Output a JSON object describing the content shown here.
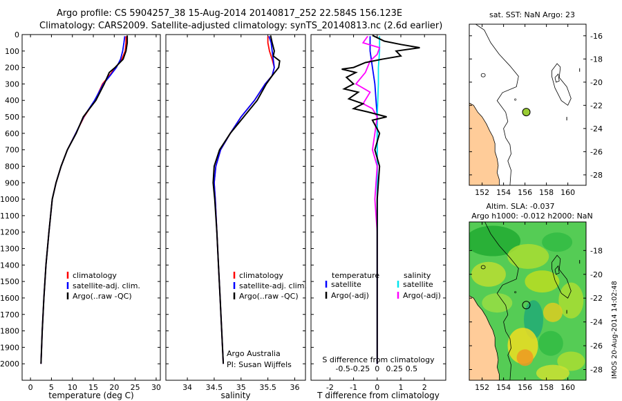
{
  "header": {
    "line1": "Argo profile: CS 5904257_38 15-Aug-2014 20140817_252 22.584S 156.123E",
    "line2": "Climatology: CARS2009. Satellite-adjusted climatology: synTS_20140813.nc (2.6d earlier)"
  },
  "colors": {
    "climatology": "#ff0000",
    "satellite": "#0000ff",
    "argo": "#000000",
    "t_satellite": "#0000ff",
    "s_satellite": "#00e5ee",
    "s_argo": "#ff00ff",
    "land": "#ffcc99",
    "float_marker": "#99cc33"
  },
  "chart_data": [
    {
      "type": "line",
      "name": "temperature-profile",
      "xlabel": "temperature (deg C)",
      "ylabel": "",
      "xlim": [
        -2,
        31
      ],
      "ylim": [
        2100,
        0
      ],
      "xticks": [
        "0",
        "5",
        "10",
        "15",
        "20",
        "25",
        "30"
      ],
      "yticks": [
        "0",
        "100",
        "200",
        "300",
        "400",
        "500",
        "600",
        "700",
        "800",
        "900",
        "1000",
        "1100",
        "1200",
        "1300",
        "1400",
        "1500",
        "1600",
        "1700",
        "1800",
        "1900",
        "2000"
      ],
      "legend": [
        "climatology",
        "satellite-adj. clim.",
        "Argo(..raw -QC)"
      ],
      "series": [
        {
          "name": "climatology",
          "color": "#ff0000",
          "points": [
            [
              22.8,
              10
            ],
            [
              22.8,
              50
            ],
            [
              22.6,
              100
            ],
            [
              21.8,
              150
            ],
            [
              20.3,
              200
            ],
            [
              18.8,
              250
            ],
            [
              17.2,
              300
            ],
            [
              15.4,
              400
            ],
            [
              12.8,
              500
            ],
            [
              10.8,
              600
            ],
            [
              8.8,
              700
            ],
            [
              7.3,
              800
            ],
            [
              6.1,
              900
            ],
            [
              5.2,
              1000
            ],
            [
              4.4,
              1200
            ],
            [
              3.7,
              1400
            ],
            [
              3.2,
              1600
            ],
            [
              2.8,
              1800
            ],
            [
              2.5,
              2000
            ]
          ]
        },
        {
          "name": "satellite",
          "color": "#0000ff",
          "points": [
            [
              22.5,
              10
            ],
            [
              22.3,
              50
            ],
            [
              22.0,
              100
            ],
            [
              21.5,
              150
            ],
            [
              20.5,
              200
            ],
            [
              19.0,
              250
            ],
            [
              17.4,
              300
            ],
            [
              15.3,
              400
            ],
            [
              12.7,
              500
            ],
            [
              10.8,
              600
            ],
            [
              8.8,
              700
            ],
            [
              7.3,
              800
            ],
            [
              6.1,
              900
            ],
            [
              5.2,
              1000
            ],
            [
              4.4,
              1200
            ],
            [
              3.7,
              1400
            ],
            [
              3.2,
              1600
            ],
            [
              2.8,
              1800
            ],
            [
              2.5,
              2000
            ]
          ]
        },
        {
          "name": "argo",
          "color": "#000000",
          "points": [
            [
              23.1,
              5
            ],
            [
              23.1,
              50
            ],
            [
              22.8,
              100
            ],
            [
              22.1,
              150
            ],
            [
              20.2,
              200
            ],
            [
              18.8,
              230
            ],
            [
              17.6,
              300
            ],
            [
              15.6,
              400
            ],
            [
              12.6,
              500
            ],
            [
              10.9,
              600
            ],
            [
              8.8,
              700
            ],
            [
              7.3,
              800
            ],
            [
              6.1,
              900
            ],
            [
              5.2,
              1000
            ],
            [
              4.4,
              1200
            ],
            [
              3.7,
              1400
            ],
            [
              3.2,
              1600
            ],
            [
              2.8,
              1800
            ],
            [
              2.5,
              2000
            ]
          ]
        }
      ]
    },
    {
      "type": "line",
      "name": "salinity-profile",
      "xlabel": "salinity",
      "xlim": [
        33.6,
        36.2
      ],
      "ylim": [
        2100,
        0
      ],
      "xticks": [
        "34",
        "34.5",
        "35",
        "35.5",
        "36"
      ],
      "legend": [
        "climatology",
        "satellite-adj. clim.",
        "Argo(..raw -QC)"
      ],
      "annotation": [
        "Argo Australia",
        "PI: Susan Wijffels"
      ],
      "series": [
        {
          "name": "climatology",
          "color": "#ff0000",
          "points": [
            [
              35.5,
              10
            ],
            [
              35.5,
              50
            ],
            [
              35.53,
              100
            ],
            [
              35.58,
              150
            ],
            [
              35.62,
              200
            ],
            [
              35.58,
              250
            ],
            [
              35.45,
              300
            ],
            [
              35.25,
              400
            ],
            [
              35.0,
              500
            ],
            [
              34.8,
              600
            ],
            [
              34.62,
              700
            ],
            [
              34.53,
              800
            ],
            [
              34.5,
              900
            ],
            [
              34.52,
              1000
            ],
            [
              34.55,
              1200
            ],
            [
              34.58,
              1400
            ],
            [
              34.61,
              1600
            ],
            [
              34.64,
              1800
            ],
            [
              34.67,
              2000
            ]
          ]
        },
        {
          "name": "satellite",
          "color": "#0000ff",
          "points": [
            [
              35.52,
              10
            ],
            [
              35.56,
              50
            ],
            [
              35.58,
              100
            ],
            [
              35.6,
              150
            ],
            [
              35.62,
              200
            ],
            [
              35.58,
              250
            ],
            [
              35.45,
              300
            ],
            [
              35.25,
              400
            ],
            [
              35.0,
              500
            ],
            [
              34.8,
              600
            ],
            [
              34.62,
              700
            ],
            [
              34.53,
              800
            ],
            [
              34.5,
              900
            ],
            [
              34.52,
              1000
            ],
            [
              34.55,
              1200
            ],
            [
              34.58,
              1400
            ],
            [
              34.61,
              1600
            ],
            [
              34.64,
              1800
            ],
            [
              34.67,
              2000
            ]
          ]
        },
        {
          "name": "argo",
          "color": "#000000",
          "points": [
            [
              35.55,
              5
            ],
            [
              35.58,
              50
            ],
            [
              35.62,
              100
            ],
            [
              35.6,
              130
            ],
            [
              35.72,
              160
            ],
            [
              35.7,
              200
            ],
            [
              35.58,
              250
            ],
            [
              35.47,
              300
            ],
            [
              35.3,
              400
            ],
            [
              35.05,
              500
            ],
            [
              34.8,
              600
            ],
            [
              34.6,
              700
            ],
            [
              34.5,
              800
            ],
            [
              34.48,
              900
            ],
            [
              34.51,
              1000
            ],
            [
              34.55,
              1200
            ],
            [
              34.58,
              1400
            ],
            [
              34.61,
              1600
            ],
            [
              34.64,
              1800
            ],
            [
              34.67,
              2000
            ]
          ]
        }
      ]
    },
    {
      "type": "line",
      "name": "difference-profile",
      "xlabel": "T difference from climatology",
      "x2label": "S difference from climatology",
      "xlim": [
        -2.8,
        2.9
      ],
      "ylim": [
        2100,
        0
      ],
      "xticks": [
        "-2",
        "-1",
        "0",
        "1",
        "2"
      ],
      "x2ticks": [
        "-0.5",
        "-0.25",
        "0",
        "0.25",
        "0.5"
      ],
      "legend_headers": [
        "temperature",
        "salinity"
      ],
      "legend": [
        "satellite",
        "Argo(-adj)",
        "satellite",
        "Argo(-adj)"
      ],
      "series": [
        {
          "name": "T satellite",
          "color": "#0000ff",
          "points": [
            [
              -0.3,
              10
            ],
            [
              -0.3,
              100
            ],
            [
              -0.2,
              200
            ],
            [
              -0.1,
              300
            ],
            [
              0.0,
              500
            ],
            [
              0.0,
              1000
            ],
            [
              0.0,
              2000
            ]
          ]
        },
        {
          "name": "S satellite",
          "color": "#00e5ee",
          "points": [
            [
              0.1,
              10
            ],
            [
              0.1,
              100
            ],
            [
              0.05,
              200
            ],
            [
              0.05,
              300
            ],
            [
              0.0,
              500
            ],
            [
              0.0,
              1000
            ],
            [
              0.0,
              2000
            ]
          ]
        },
        {
          "name": "S Argo",
          "color": "#ff00ff",
          "points": [
            [
              -0.4,
              10
            ],
            [
              -0.6,
              50
            ],
            [
              0.1,
              80
            ],
            [
              0.0,
              120
            ],
            [
              -0.3,
              160
            ],
            [
              -0.5,
              230
            ],
            [
              -0.9,
              300
            ],
            [
              -0.3,
              350
            ],
            [
              -0.6,
              420
            ],
            [
              -0.2,
              450
            ],
            [
              0.0,
              500
            ],
            [
              -0.1,
              600
            ],
            [
              -0.2,
              700
            ],
            [
              0.0,
              800
            ],
            [
              -0.1,
              1000
            ],
            [
              0.0,
              1200
            ],
            [
              0.0,
              2000
            ]
          ]
        },
        {
          "name": "T Argo",
          "color": "#000000",
          "points": [
            [
              -0.2,
              5
            ],
            [
              0.3,
              40
            ],
            [
              1.0,
              60
            ],
            [
              1.8,
              80
            ],
            [
              0.8,
              100
            ],
            [
              1.0,
              130
            ],
            [
              0.2,
              150
            ],
            [
              -0.5,
              170
            ],
            [
              -1.0,
              200
            ],
            [
              -1.5,
              210
            ],
            [
              -0.9,
              230
            ],
            [
              -1.3,
              260
            ],
            [
              -1.0,
              300
            ],
            [
              -1.4,
              330
            ],
            [
              -0.8,
              350
            ],
            [
              -1.2,
              390
            ],
            [
              -0.6,
              420
            ],
            [
              -1.0,
              450
            ],
            [
              -0.4,
              470
            ],
            [
              0.4,
              500
            ],
            [
              -0.2,
              520
            ],
            [
              0.1,
              600
            ],
            [
              -0.1,
              700
            ],
            [
              0.1,
              800
            ],
            [
              0.0,
              1000
            ],
            [
              0.0,
              2000
            ]
          ]
        }
      ]
    },
    {
      "type": "map",
      "name": "sst-map",
      "title": "sat. SST: NaN Argo: 23",
      "xticks": [
        "152",
        "154",
        "156",
        "158",
        "160"
      ],
      "yticks": [
        "-16",
        "-18",
        "-20",
        "-22",
        "-24",
        "-26",
        "-28"
      ],
      "lon_range": [
        150.8,
        161.7
      ],
      "lat_range": [
        -28.9,
        -15.0
      ],
      "float": {
        "lon": 156.123,
        "lat": -22.584
      }
    },
    {
      "type": "map",
      "name": "sla-map",
      "title_line1": "Altim. SLA: -0.037",
      "title_line2": "Argo h1000: -0.012 h2000: NaN",
      "xticks": [
        "152",
        "154",
        "156",
        "158",
        "160"
      ],
      "yticks": [
        "-18",
        "-20",
        "-22",
        "-24",
        "-26",
        "-28"
      ],
      "lon_range": [
        150.8,
        161.7
      ],
      "lat_range": [
        -28.9,
        -15.6
      ],
      "float": {
        "lon": 156.123,
        "lat": -22.584
      }
    }
  ],
  "footer": {
    "side_label": "IMOS 20-Aug-2014 14:02:48"
  }
}
